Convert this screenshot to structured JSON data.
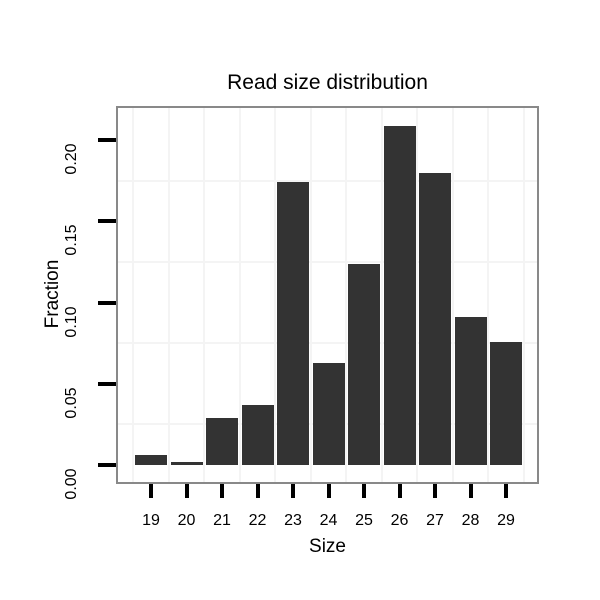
{
  "chart_data": {
    "type": "bar",
    "title": "Read size distribution",
    "xlabel": "Size",
    "ylabel": "Fraction",
    "categories": [
      "19",
      "20",
      "21",
      "22",
      "23",
      "24",
      "25",
      "26",
      "27",
      "28",
      "29"
    ],
    "values": [
      0.006,
      0.002,
      0.029,
      0.037,
      0.174,
      0.063,
      0.124,
      0.209,
      0.18,
      0.091,
      0.076
    ],
    "ylim": [
      0,
      0.22
    ],
    "ytick_labels": [
      "0.00",
      "0.05",
      "0.10",
      "0.15",
      "0.20"
    ],
    "ytick_values": [
      0,
      0.05,
      0.1,
      0.15,
      0.2
    ],
    "minor_gridlines_y": [
      0.025,
      0.075,
      0.125,
      0.175
    ],
    "grid": "minor-only",
    "legend": "none",
    "colors": {
      "bar": "#333333",
      "panel_border": "#898989",
      "gridline": "#f4f4f4",
      "tick": "#000000",
      "text": "#000000",
      "background": "#ffffff"
    }
  }
}
